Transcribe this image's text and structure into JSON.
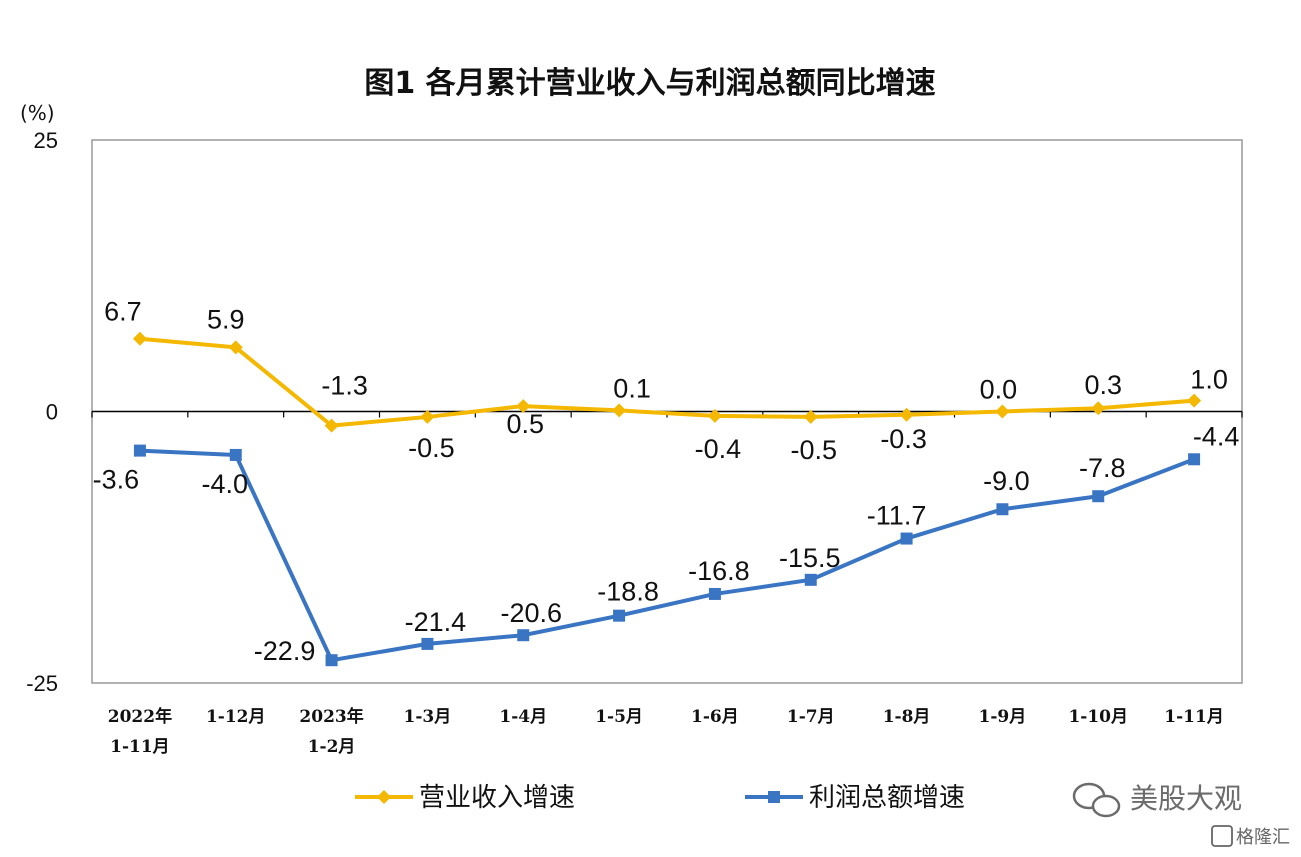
{
  "chart_data": {
    "type": "line",
    "title": "图1  各月累计营业收入与利润总额同比增速",
    "unit_label": "(%)",
    "categories": [
      [
        "2022年",
        "1-11月"
      ],
      [
        "1-12月"
      ],
      [
        "2023年",
        "1-2月"
      ],
      [
        "1-3月"
      ],
      [
        "1-4月"
      ],
      [
        "1-5月"
      ],
      [
        "1-6月"
      ],
      [
        "1-7月"
      ],
      [
        "1-8月"
      ],
      [
        "1-9月"
      ],
      [
        "1-10月"
      ],
      [
        "1-11月"
      ]
    ],
    "ylim": [
      -25,
      25
    ],
    "yticks": [
      "25",
      "0",
      "-25"
    ],
    "grid": false,
    "legend_position": "bottom",
    "series": [
      {
        "name": "营业收入增速",
        "color": "#F5B800",
        "marker": "diamond",
        "values": [
          6.7,
          5.9,
          -1.3,
          -0.5,
          0.5,
          0.1,
          -0.4,
          -0.5,
          -0.3,
          0.0,
          0.3,
          1.0
        ],
        "labels": [
          "6.7",
          "5.9",
          "-1.3",
          "-0.5",
          "0.5",
          "0.1",
          "-0.4",
          "-0.5",
          "-0.3",
          "0.0",
          "0.3",
          "1.0"
        ]
      },
      {
        "name": "利润总额增速",
        "color": "#3A75C4",
        "marker": "square",
        "values": [
          -3.6,
          -4.0,
          -22.9,
          -21.4,
          -20.6,
          -18.8,
          -16.8,
          -15.5,
          -11.7,
          -9.0,
          -7.8,
          -4.4
        ],
        "labels": [
          "-3.6",
          "-4.0",
          "-22.9",
          "-21.4",
          "-20.6",
          "-18.8",
          "-16.8",
          "-15.5",
          "-11.7",
          "-9.0",
          "-7.8",
          "-4.4"
        ]
      }
    ]
  },
  "watermark": {
    "text": "美股大观",
    "corner": "格隆汇",
    "icon": "wechat-icon"
  }
}
